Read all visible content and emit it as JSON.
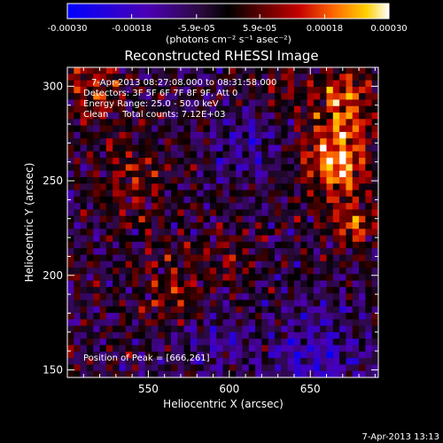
{
  "chart_data": {
    "type": "heatmap",
    "title": "Reconstructed RHESSI Image",
    "xlabel": "Heliocentric X (arcsec)",
    "ylabel": "Heliocentric Y (arcsec)",
    "xlim": [
      500,
      692
    ],
    "ylim": [
      146,
      310
    ],
    "x_ticks": [
      550,
      600,
      650
    ],
    "y_ticks": [
      150,
      200,
      250,
      300
    ],
    "x_tick_labels": [
      "550",
      "600",
      "650"
    ],
    "y_tick_labels": [
      "150",
      "200",
      "250",
      "300"
    ],
    "colorbar": {
      "range": [
        -0.0003,
        0.0003
      ],
      "ticks": [
        -0.0003,
        -0.00018,
        -5.9e-05,
        5.9e-05,
        0.00018,
        0.0003
      ],
      "tick_labels": [
        "-0.00030",
        "-0.00018",
        "-5.9e-05",
        "5.9e-05",
        "0.00018",
        "0.00030"
      ],
      "unit_label": "(photons cm⁻² s⁻¹ asec⁻²)",
      "colormap": [
        "#0000ff",
        "#4b00b4",
        "#2a0a3a",
        "#000000",
        "#5a0000",
        "#c40000",
        "#ff6a00",
        "#ffd000",
        "#ffffff"
      ]
    },
    "annotations": [
      "7-Apr-2013 08:27:08.000 to 08:31:58.000",
      "Detectors: 3F 5F 6F 7F 8F 9F, Att 0",
      "Energy Range: 25.0 - 50.0 keV",
      "Clean     Total counts: 7.12E+03"
    ],
    "peak_label": "Position of Peak = [666,261]",
    "peak": [
      666,
      261
    ],
    "grid": false
  },
  "footer_timestamp": "7-Apr-2013 13:13"
}
